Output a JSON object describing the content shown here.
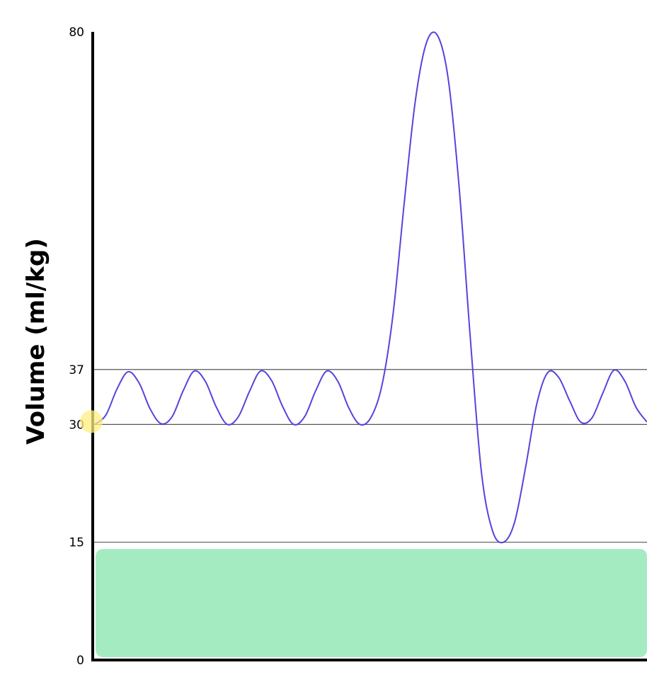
{
  "chart_data": {
    "type": "line",
    "ylabel": "Volume (ml/kg)",
    "xlabel": "",
    "ylim": [
      0,
      80
    ],
    "yticks": [
      {
        "value": 0,
        "label": "0"
      },
      {
        "value": 15,
        "label": "15"
      },
      {
        "value": 30,
        "label": "30"
      },
      {
        "value": 37,
        "label": "37"
      },
      {
        "value": 80,
        "label": "80"
      }
    ],
    "reference_lines": [
      15,
      30,
      37
    ],
    "series": [
      {
        "color": "#5544dd",
        "description_free": true,
        "points": [
          [
            0.0,
            30.0
          ],
          [
            0.04,
            31.2
          ],
          [
            0.08,
            34.5
          ],
          [
            0.12,
            36.7
          ],
          [
            0.16,
            35.3
          ],
          [
            0.2,
            32.0
          ],
          [
            0.24,
            30.1
          ],
          [
            0.28,
            31.0
          ],
          [
            0.32,
            34.3
          ],
          [
            0.36,
            36.8
          ],
          [
            0.4,
            35.5
          ],
          [
            0.44,
            32.2
          ],
          [
            0.48,
            30.0
          ],
          [
            0.52,
            31.0
          ],
          [
            0.56,
            34.2
          ],
          [
            0.6,
            36.8
          ],
          [
            0.64,
            35.6
          ],
          [
            0.68,
            32.3
          ],
          [
            0.72,
            30.0
          ],
          [
            0.76,
            31.0
          ],
          [
            0.8,
            34.3
          ],
          [
            0.84,
            36.8
          ],
          [
            0.88,
            35.5
          ],
          [
            0.92,
            32.1
          ],
          [
            0.96,
            30.0
          ],
          [
            1.0,
            30.9
          ],
          [
            1.04,
            35.0
          ],
          [
            1.08,
            44.0
          ],
          [
            1.12,
            58.0
          ],
          [
            1.16,
            71.0
          ],
          [
            1.2,
            78.5
          ],
          [
            1.24,
            79.6
          ],
          [
            1.28,
            74.0
          ],
          [
            1.32,
            60.0
          ],
          [
            1.36,
            41.0
          ],
          [
            1.4,
            24.0
          ],
          [
            1.44,
            16.5
          ],
          [
            1.48,
            15.0
          ],
          [
            1.52,
            17.5
          ],
          [
            1.56,
            24.5
          ],
          [
            1.6,
            32.5
          ],
          [
            1.64,
            36.6
          ],
          [
            1.68,
            36.0
          ],
          [
            1.72,
            33.0
          ],
          [
            1.76,
            30.3
          ],
          [
            1.8,
            30.8
          ],
          [
            1.84,
            34.0
          ],
          [
            1.88,
            36.9
          ],
          [
            1.92,
            35.5
          ],
          [
            1.96,
            32.2
          ],
          [
            2.0,
            30.3
          ]
        ]
      }
    ],
    "xlim": [
      0,
      2.0
    ],
    "grid": false,
    "highlight_marker": {
      "x": 0.0,
      "y": 30,
      "color": "#ffef80"
    },
    "redaction_box": {
      "y_from": 0,
      "y_to": 14.5,
      "color": "#8fe6b2"
    }
  }
}
